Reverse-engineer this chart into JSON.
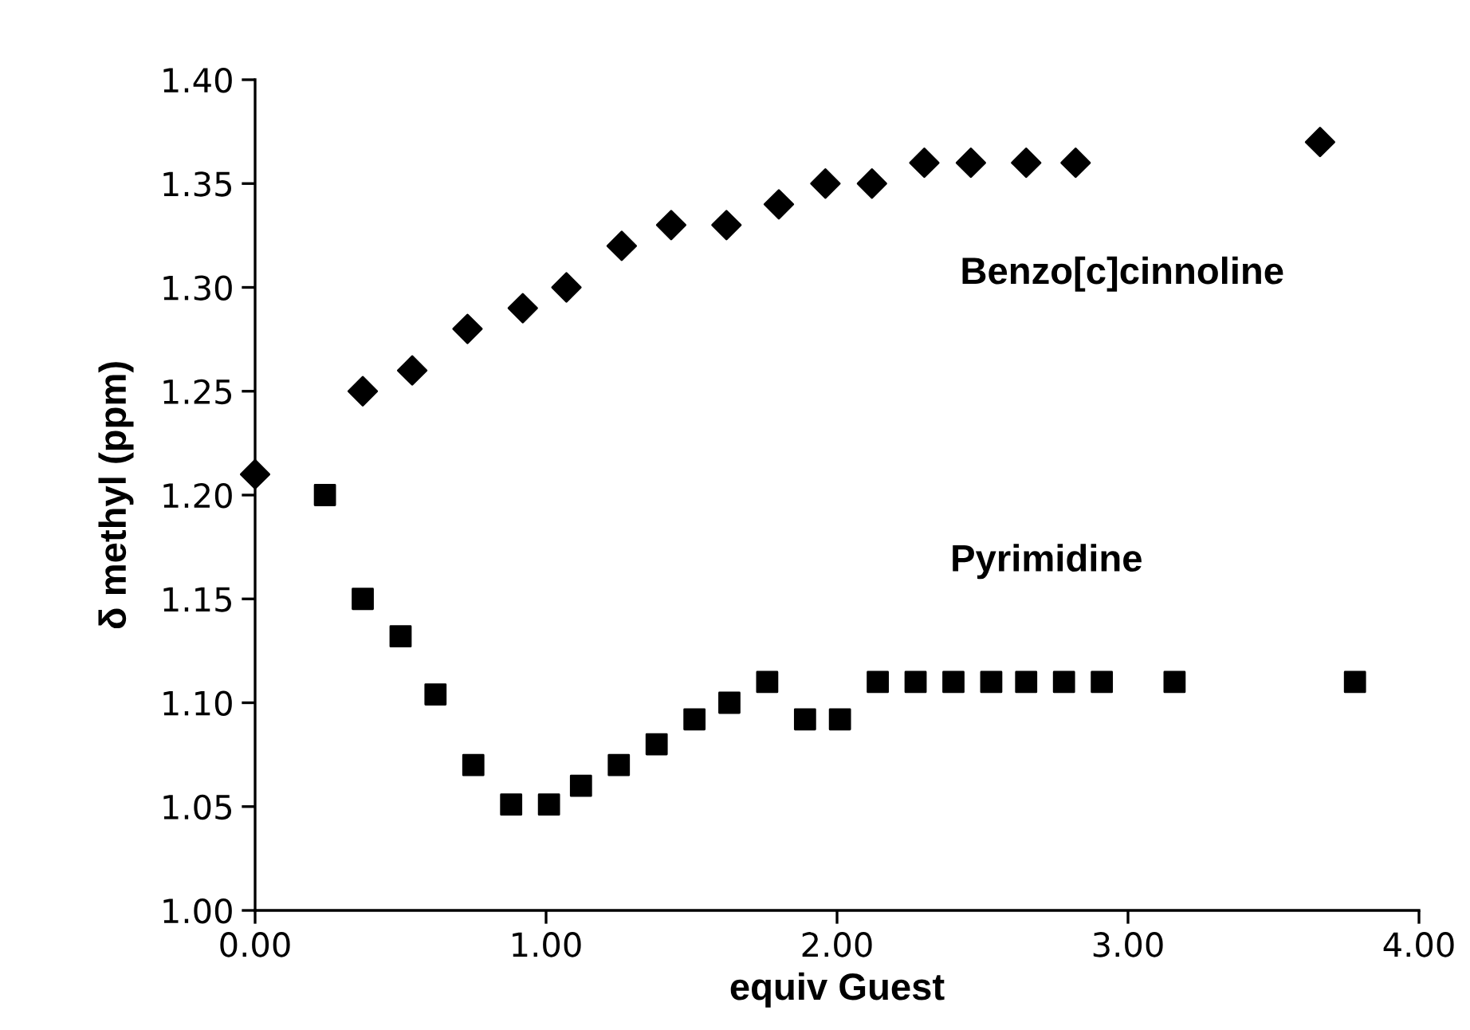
{
  "chart_data": {
    "type": "scatter",
    "xlabel": "equiv Guest",
    "ylabel": "δ methyl (ppm)",
    "xlim": [
      0,
      4
    ],
    "xticks": [
      {
        "value": 0,
        "label": "0.00"
      },
      {
        "value": 1,
        "label": "1.00"
      },
      {
        "value": 2,
        "label": "2.00"
      },
      {
        "value": 3,
        "label": "3.00"
      },
      {
        "value": 4,
        "label": "4.00"
      }
    ],
    "ylim": [
      1.0,
      1.4
    ],
    "yticks": [
      {
        "value": 1.0,
        "label": "1.00"
      },
      {
        "value": 1.05,
        "label": "1.05"
      },
      {
        "value": 1.1,
        "label": "1.10"
      },
      {
        "value": 1.15,
        "label": "1.15"
      },
      {
        "value": 1.2,
        "label": "1.20"
      },
      {
        "value": 1.25,
        "label": "1.25"
      },
      {
        "value": 1.3,
        "label": "1.30"
      },
      {
        "value": 1.35,
        "label": "1.35"
      },
      {
        "value": 1.4,
        "label": "1.40"
      }
    ],
    "grid": false,
    "legend": false,
    "series": [
      {
        "name": "Benzo[c]cinnoline",
        "color": "#000000",
        "marker": "diamond",
        "x": [
          0,
          0.37,
          0.54,
          0.73,
          0.92,
          1.07,
          1.26,
          1.43,
          1.62,
          1.8,
          1.96,
          2.12,
          2.3,
          2.46,
          2.65,
          2.82,
          3.66
        ],
        "values": [
          1.21,
          1.25,
          1.26,
          1.28,
          1.29,
          1.3,
          1.32,
          1.33,
          1.33,
          1.34,
          1.35,
          1.35,
          1.36,
          1.36,
          1.36,
          1.36,
          1.37
        ]
      },
      {
        "name": "Pyrimidine",
        "color": "#000000",
        "marker": "square",
        "x": [
          0.24,
          0.37,
          0.5,
          0.62,
          0.75,
          0.88,
          1.01,
          1.12,
          1.25,
          1.38,
          1.51,
          1.63,
          1.76,
          1.89,
          2.01,
          2.14,
          2.27,
          2.4,
          2.53,
          2.65,
          2.78,
          2.91,
          3.16,
          3.78
        ],
        "values": [
          1.2,
          1.15,
          1.132,
          1.104,
          1.07,
          1.051,
          1.051,
          1.06,
          1.07,
          1.08,
          1.092,
          1.1,
          1.11,
          1.092,
          1.092,
          1.11,
          1.11,
          1.11,
          1.11,
          1.11,
          1.11,
          1.11,
          1.11,
          1.11
        ]
      }
    ]
  }
}
